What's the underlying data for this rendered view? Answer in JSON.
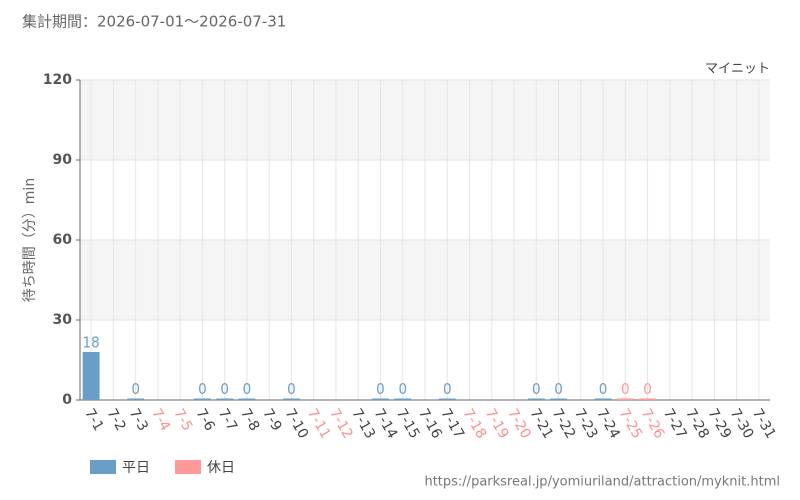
{
  "chart_data": {
    "type": "bar",
    "title": "集計期間：2026-07-01～2026-07-31",
    "subtitle": "マイニット",
    "y_label": "待ち時間（分）min",
    "source": "https://parksreal.jp/yomiuriland/attraction/myknit.html",
    "categories": [
      "7-1",
      "7-2",
      "7-3",
      "7-4",
      "7-5",
      "7-6",
      "7-7",
      "7-8",
      "7-9",
      "7-10",
      "7-11",
      "7-12",
      "7-13",
      "7-14",
      "7-15",
      "7-16",
      "7-17",
      "7-18",
      "7-19",
      "7-20",
      "7-21",
      "7-22",
      "7-23",
      "7-24",
      "7-25",
      "7-26",
      "7-27",
      "7-28",
      "7-29",
      "7-30",
      "7-31"
    ],
    "category_colors": [
      "#444444",
      "#444444",
      "#444444",
      "#ff8f8f",
      "#ff8f8f",
      "#444444",
      "#444444",
      "#444444",
      "#444444",
      "#444444",
      "#ff8f8f",
      "#ff8f8f",
      "#444444",
      "#444444",
      "#444444",
      "#444444",
      "#444444",
      "#ff8f8f",
      "#ff8f8f",
      "#ff8f8f",
      "#444444",
      "#444444",
      "#444444",
      "#444444",
      "#ff8f8f",
      "#ff8f8f",
      "#444444",
      "#444444",
      "#444444",
      "#444444",
      "#444444"
    ],
    "series": [
      {
        "name": "平日",
        "color": "#6a9ec7",
        "values": [
          18,
          null,
          0,
          null,
          null,
          0,
          0,
          0,
          null,
          0,
          null,
          null,
          null,
          0,
          0,
          null,
          0,
          null,
          null,
          null,
          0,
          0,
          null,
          0,
          null,
          null,
          null,
          null,
          null,
          null,
          null
        ]
      },
      {
        "name": "休日",
        "color": "#ff9999",
        "values": [
          null,
          null,
          null,
          null,
          null,
          null,
          null,
          null,
          null,
          null,
          null,
          null,
          null,
          null,
          null,
          null,
          null,
          null,
          null,
          null,
          null,
          null,
          null,
          null,
          0,
          0,
          null,
          null,
          null,
          null,
          null
        ]
      }
    ],
    "ylim": [
      0,
      120
    ],
    "yticks": [
      0,
      30,
      60,
      90,
      120
    ],
    "grid": true
  }
}
